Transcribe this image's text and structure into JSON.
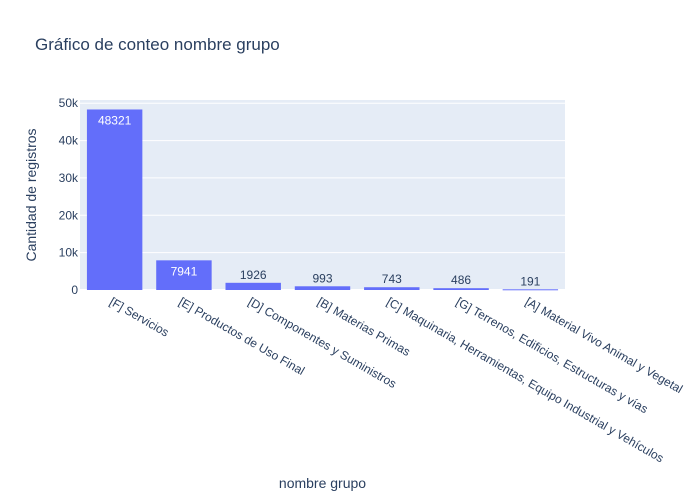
{
  "chart_data": {
    "type": "bar",
    "title": "Gráfico de conteo nombre grupo",
    "xlabel": "nombre grupo",
    "ylabel": "Cantidad de registros",
    "categories": [
      "[F] Servicios",
      "[E] Productos de Uso Final",
      "[D] Componentes y Suministros",
      "[B] Materias Primas",
      "[C] Maquinaria, Herramientas, Equipo Industrial y Vehículos",
      "[G] Terrenos, Edificios, Estructuras y vías",
      "[A] Material Vivo Animal y Vegetal"
    ],
    "values": [
      48321,
      7941,
      1926,
      993,
      743,
      486,
      191
    ],
    "data_labels": [
      "48321",
      "7941",
      "1926",
      "993",
      "743",
      "486",
      "191"
    ],
    "ylim": [
      0,
      50860
    ],
    "yticks": [
      0,
      10000,
      20000,
      30000,
      40000,
      50000
    ],
    "ytick_labels": [
      "0",
      "10k",
      "20k",
      "30k",
      "40k",
      "50k"
    ],
    "grid": true,
    "legend": "none",
    "colors": {
      "bar": "#636efa",
      "plot_bg": "#e5ecf6",
      "grid": "#ffffff",
      "text": "#2a3f5f",
      "label_inside": "#ffffff"
    }
  }
}
